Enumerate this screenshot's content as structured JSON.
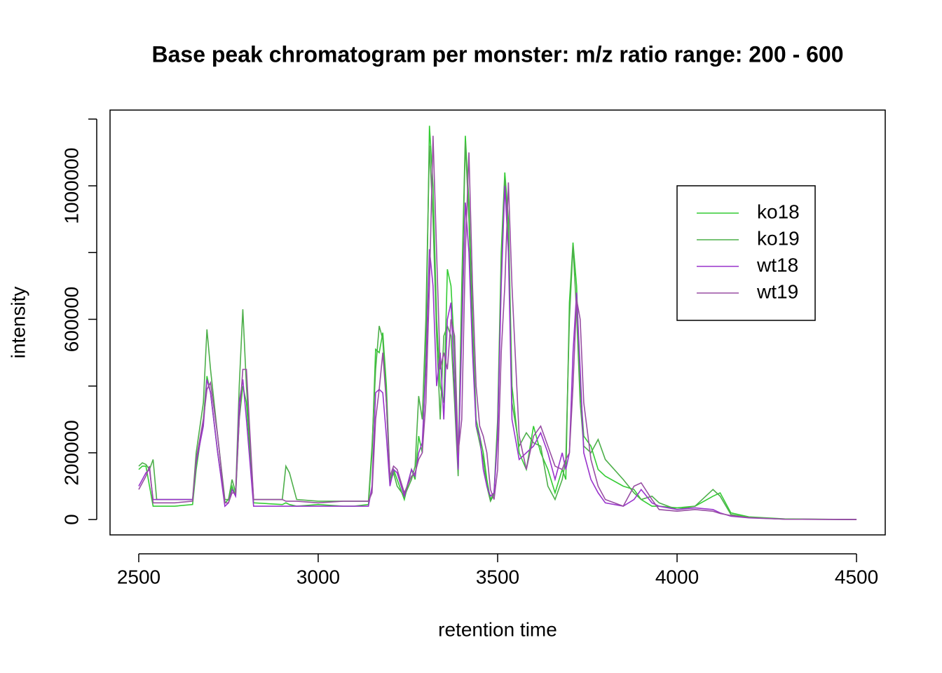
{
  "chart_data": {
    "type": "line",
    "title": "Base peak chromatogram per monster: m/z ratio range: 200 - 600",
    "x_label": "retention time",
    "y_label": "intensity",
    "xlim": [
      2420,
      4580
    ],
    "ylim": [
      -46000,
      1227000
    ],
    "xticks": [
      2500,
      3000,
      3500,
      4000,
      4500
    ],
    "yticks": [
      0,
      200000,
      600000,
      1000000
    ],
    "yticks_unlabeled": [
      400000,
      800000,
      1200000
    ],
    "legend": "top-right",
    "x": [
      2500,
      2510,
      2520,
      2530,
      2540,
      2550,
      2600,
      2650,
      2660,
      2680,
      2690,
      2700,
      2720,
      2740,
      2750,
      2760,
      2770,
      2780,
      2790,
      2800,
      2820,
      2900,
      2910,
      2920,
      2940,
      3000,
      3070,
      3100,
      3140,
      3150,
      3160,
      3170,
      3180,
      3190,
      3200,
      3210,
      3220,
      3240,
      3260,
      3270,
      3280,
      3290,
      3300,
      3310,
      3320,
      3330,
      3340,
      3350,
      3360,
      3370,
      3380,
      3390,
      3400,
      3410,
      3420,
      3430,
      3440,
      3450,
      3460,
      3470,
      3480,
      3490,
      3500,
      3510,
      3520,
      3530,
      3540,
      3560,
      3580,
      3600,
      3620,
      3640,
      3660,
      3680,
      3690,
      3700,
      3710,
      3720,
      3730,
      3740,
      3760,
      3780,
      3800,
      3850,
      3880,
      3900,
      3930,
      3950,
      4000,
      4050,
      4100,
      4120,
      4150,
      4200,
      4300,
      4500
    ],
    "series": [
      {
        "name": "ko18",
        "color": "#33cc33",
        "values": [
          150000,
          160000,
          160000,
          100000,
          40000,
          40000,
          40000,
          45000,
          150000,
          300000,
          430000,
          380000,
          200000,
          50000,
          60000,
          100000,
          70000,
          300000,
          400000,
          350000,
          50000,
          45000,
          50000,
          45000,
          40000,
          45000,
          40000,
          40000,
          45000,
          200000,
          510000,
          500000,
          560000,
          400000,
          120000,
          150000,
          120000,
          60000,
          150000,
          120000,
          250000,
          200000,
          500000,
          1180000,
          1000000,
          600000,
          400000,
          350000,
          750000,
          700000,
          500000,
          150000,
          700000,
          1150000,
          950000,
          600000,
          300000,
          250000,
          200000,
          120000,
          60000,
          80000,
          300000,
          800000,
          1040000,
          900000,
          400000,
          200000,
          150000,
          280000,
          200000,
          150000,
          80000,
          150000,
          120000,
          650000,
          830000,
          700000,
          400000,
          250000,
          220000,
          150000,
          130000,
          100000,
          90000,
          60000,
          40000,
          40000,
          35000,
          40000,
          70000,
          80000,
          20000,
          8000,
          2000,
          0
        ]
      },
      {
        "name": "ko19",
        "color": "#4daf4a",
        "values": [
          160000,
          170000,
          165000,
          150000,
          180000,
          60000,
          60000,
          60000,
          200000,
          350000,
          570000,
          450000,
          250000,
          60000,
          60000,
          120000,
          80000,
          400000,
          630000,
          400000,
          60000,
          60000,
          160000,
          140000,
          60000,
          55000,
          55000,
          55000,
          55000,
          220000,
          450000,
          580000,
          540000,
          350000,
          110000,
          140000,
          100000,
          70000,
          120000,
          160000,
          370000,
          300000,
          600000,
          1120000,
          900000,
          550000,
          300000,
          550000,
          580000,
          550000,
          350000,
          130000,
          650000,
          1130000,
          900000,
          550000,
          280000,
          230000,
          180000,
          100000,
          55000,
          75000,
          280000,
          750000,
          1020000,
          850000,
          350000,
          220000,
          260000,
          230000,
          220000,
          100000,
          60000,
          120000,
          180000,
          600000,
          820000,
          620000,
          350000,
          220000,
          200000,
          240000,
          180000,
          120000,
          80000,
          60000,
          70000,
          50000,
          30000,
          40000,
          90000,
          70000,
          15000,
          6000,
          1500,
          0
        ]
      },
      {
        "name": "wt18",
        "color": "#9933cc",
        "values": [
          100000,
          120000,
          140000,
          150000,
          60000,
          60000,
          60000,
          60000,
          170000,
          280000,
          420000,
          380000,
          200000,
          40000,
          50000,
          90000,
          70000,
          350000,
          420000,
          300000,
          40000,
          40000,
          40000,
          40000,
          40000,
          40000,
          40000,
          40000,
          40000,
          100000,
          380000,
          390000,
          380000,
          250000,
          100000,
          150000,
          140000,
          70000,
          150000,
          130000,
          200000,
          230000,
          450000,
          810000,
          700000,
          400000,
          500000,
          300000,
          600000,
          650000,
          400000,
          150000,
          550000,
          950000,
          800000,
          500000,
          280000,
          250000,
          150000,
          100000,
          70000,
          80000,
          250000,
          700000,
          1000000,
          800000,
          300000,
          180000,
          200000,
          220000,
          260000,
          200000,
          120000,
          200000,
          150000,
          200000,
          500000,
          680000,
          450000,
          200000,
          120000,
          80000,
          50000,
          40000,
          60000,
          90000,
          50000,
          40000,
          30000,
          35000,
          30000,
          20000,
          10000,
          5000,
          1000,
          0
        ]
      },
      {
        "name": "wt19",
        "color": "#984ea3",
        "values": [
          90000,
          110000,
          130000,
          160000,
          50000,
          50000,
          50000,
          55000,
          180000,
          300000,
          390000,
          410000,
          250000,
          50000,
          50000,
          80000,
          80000,
          300000,
          450000,
          450000,
          60000,
          60000,
          55000,
          55000,
          55000,
          50000,
          55000,
          55000,
          55000,
          80000,
          300000,
          390000,
          500000,
          350000,
          130000,
          160000,
          150000,
          80000,
          130000,
          140000,
          180000,
          200000,
          350000,
          700000,
          1150000,
          800000,
          450000,
          500000,
          450000,
          600000,
          550000,
          200000,
          300000,
          800000,
          1100000,
          700000,
          400000,
          280000,
          250000,
          200000,
          90000,
          60000,
          150000,
          500000,
          700000,
          1010000,
          700000,
          250000,
          150000,
          250000,
          280000,
          220000,
          160000,
          150000,
          180000,
          200000,
          400000,
          660000,
          600000,
          350000,
          180000,
          100000,
          60000,
          40000,
          100000,
          110000,
          60000,
          30000,
          25000,
          30000,
          25000,
          18000,
          12000,
          6000,
          1000,
          0
        ]
      }
    ]
  }
}
